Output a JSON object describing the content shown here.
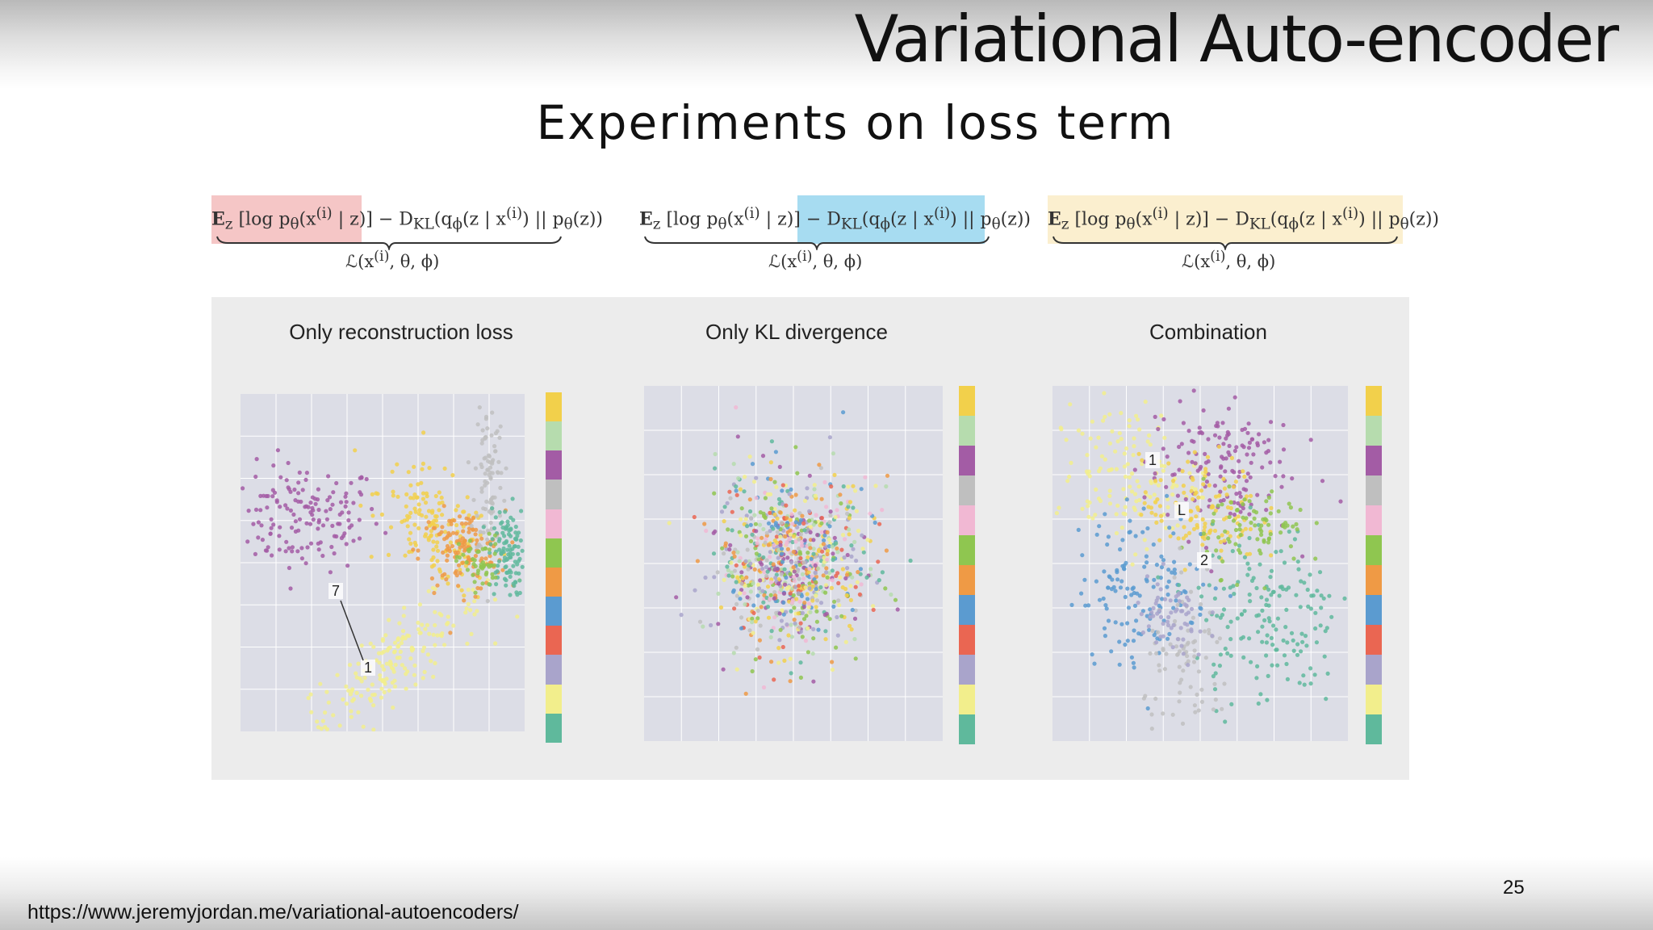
{
  "slide": {
    "title": "Variational Auto-encoder",
    "subtitle": "Experiments on loss term",
    "footer_url": "https://www.jeremyjordan.me/variational-autoencoders/",
    "page_number": "25"
  },
  "equations": [
    {
      "highlight": "reconstruction term",
      "highlight_color": "#f5c6c6",
      "text_lhs": "E",
      "text_lhs_sub": "z",
      "text_expect": "[log p",
      "text_theta": "θ",
      "text_mid": "(x",
      "text_i": "(i)",
      "text_z": " | z)]",
      "text_minus": " − D",
      "text_kl": "KL",
      "text_q": "(q",
      "text_phi": "ϕ",
      "text_rest": "(z | x",
      "text_i2": "(i)",
      "text_end": ") || p",
      "text_theta2": "θ",
      "text_final": "(z))",
      "sub_prefix": "ℒ(x",
      "sub_i": "(i)",
      "sub_suffix": ", θ, ϕ)"
    },
    {
      "highlight": "KL term",
      "highlight_color": "#a7dcf1",
      "text_lhs": "E",
      "text_lhs_sub": "z",
      "text_expect": "[log p",
      "text_theta": "θ",
      "text_mid": "(x",
      "text_i": "(i)",
      "text_z": " | z)]",
      "text_minus": " − D",
      "text_kl": "KL",
      "text_q": "(q",
      "text_phi": "ϕ",
      "text_rest": "(z | x",
      "text_i2": "(i)",
      "text_end": ") || p",
      "text_theta2": "θ",
      "text_final": "(z))",
      "sub_prefix": "ℒ(x",
      "sub_i": "(i)",
      "sub_suffix": ", θ, ϕ)"
    },
    {
      "highlight": "whole expression",
      "highlight_color": "#fbefcf",
      "text_lhs": "E",
      "text_lhs_sub": "z",
      "text_expect": "[log p",
      "text_theta": "θ",
      "text_mid": "(x",
      "text_i": "(i)",
      "text_z": " | z)]",
      "text_minus": " − D",
      "text_kl": "KL",
      "text_q": "(q",
      "text_phi": "ϕ",
      "text_rest": "(z | x",
      "text_i2": "(i)",
      "text_end": ") || p",
      "text_theta2": "θ",
      "text_final": "(z))",
      "sub_prefix": "ℒ(x",
      "sub_i": "(i)",
      "sub_suffix": ", θ, ϕ)"
    }
  ],
  "colorbar_colors": [
    "#f2d04b",
    "#b6dcae",
    "#a35ca5",
    "#bfbfbf",
    "#f1b8d3",
    "#8fc650",
    "#ef9a45",
    "#5b9bd0",
    "#ea6652",
    "#a9a4cb",
    "#f2ee8c",
    "#5fb99c"
  ],
  "chart_data": [
    {
      "type": "scatter",
      "title": "Only reconstruction loss",
      "xlabel": "",
      "ylabel": "",
      "grid": true,
      "annotations": [
        "7",
        "1"
      ],
      "legend": "colorbar right",
      "clusters": [
        {
          "color": "#a35ca5",
          "cx": -8.5,
          "cy": 2.5,
          "sx": 2.2,
          "sy": 1.2,
          "n": 160
        },
        {
          "color": "#f2ee8c",
          "cx": -3.5,
          "cy": -4.0,
          "sx": 2.6,
          "sy": 0.9,
          "n": 190
        },
        {
          "color": "#f2d04b",
          "cx": -1.0,
          "cy": 2.0,
          "sx": 1.6,
          "sy": 1.2,
          "n": 150
        },
        {
          "color": "#ef9a45",
          "cx": 0.5,
          "cy": 1.0,
          "sx": 1.2,
          "sy": 0.9,
          "n": 120
        },
        {
          "color": "#bfbfbf",
          "cx": 2.0,
          "cy": 4.5,
          "sx": 0.4,
          "sy": 2.0,
          "n": 90
        },
        {
          "color": "#5fb99c",
          "cx": 3.0,
          "cy": 1.0,
          "sx": 0.5,
          "sy": 1.0,
          "n": 110
        },
        {
          "color": "#8fc650",
          "cx": 1.5,
          "cy": 0.5,
          "sx": 0.6,
          "sy": 0.6,
          "n": 50
        }
      ]
    },
    {
      "type": "scatter",
      "title": "Only KL divergence",
      "xlabel": "",
      "ylabel": "",
      "grid": true,
      "legend": "colorbar right",
      "clusters": [
        {
          "color": "mixed",
          "cx": 0,
          "cy": 0,
          "sx": 1.0,
          "sy": 1.0,
          "n": 900
        }
      ]
    },
    {
      "type": "scatter",
      "title": "Combination",
      "xlabel": "",
      "ylabel": "",
      "grid": true,
      "annotations": [
        "1",
        "L",
        "2"
      ],
      "legend": "colorbar right",
      "clusters": [
        {
          "color": "#f2ee8c",
          "cx": -2.0,
          "cy": 2.0,
          "sx": 1.0,
          "sy": 0.8,
          "n": 140
        },
        {
          "color": "#a35ca5",
          "cx": 0.5,
          "cy": 2.2,
          "sx": 1.0,
          "sy": 0.8,
          "n": 150
        },
        {
          "color": "#f2d04b",
          "cx": 0.0,
          "cy": 1.2,
          "sx": 0.8,
          "sy": 0.6,
          "n": 120
        },
        {
          "color": "#5b9bd0",
          "cx": -1.5,
          "cy": -0.5,
          "sx": 0.9,
          "sy": 0.9,
          "n": 140
        },
        {
          "color": "#5fb99c",
          "cx": 1.8,
          "cy": -1.2,
          "sx": 1.0,
          "sy": 1.0,
          "n": 170
        },
        {
          "color": "#8fc650",
          "cx": 1.5,
          "cy": 0.8,
          "sx": 0.7,
          "sy": 0.5,
          "n": 80
        },
        {
          "color": "#bfbfbf",
          "cx": -0.3,
          "cy": -2.3,
          "sx": 0.6,
          "sy": 0.8,
          "n": 80
        },
        {
          "color": "#a9a4cb",
          "cx": -0.8,
          "cy": -1.3,
          "sx": 0.5,
          "sy": 0.5,
          "n": 60
        }
      ]
    }
  ]
}
